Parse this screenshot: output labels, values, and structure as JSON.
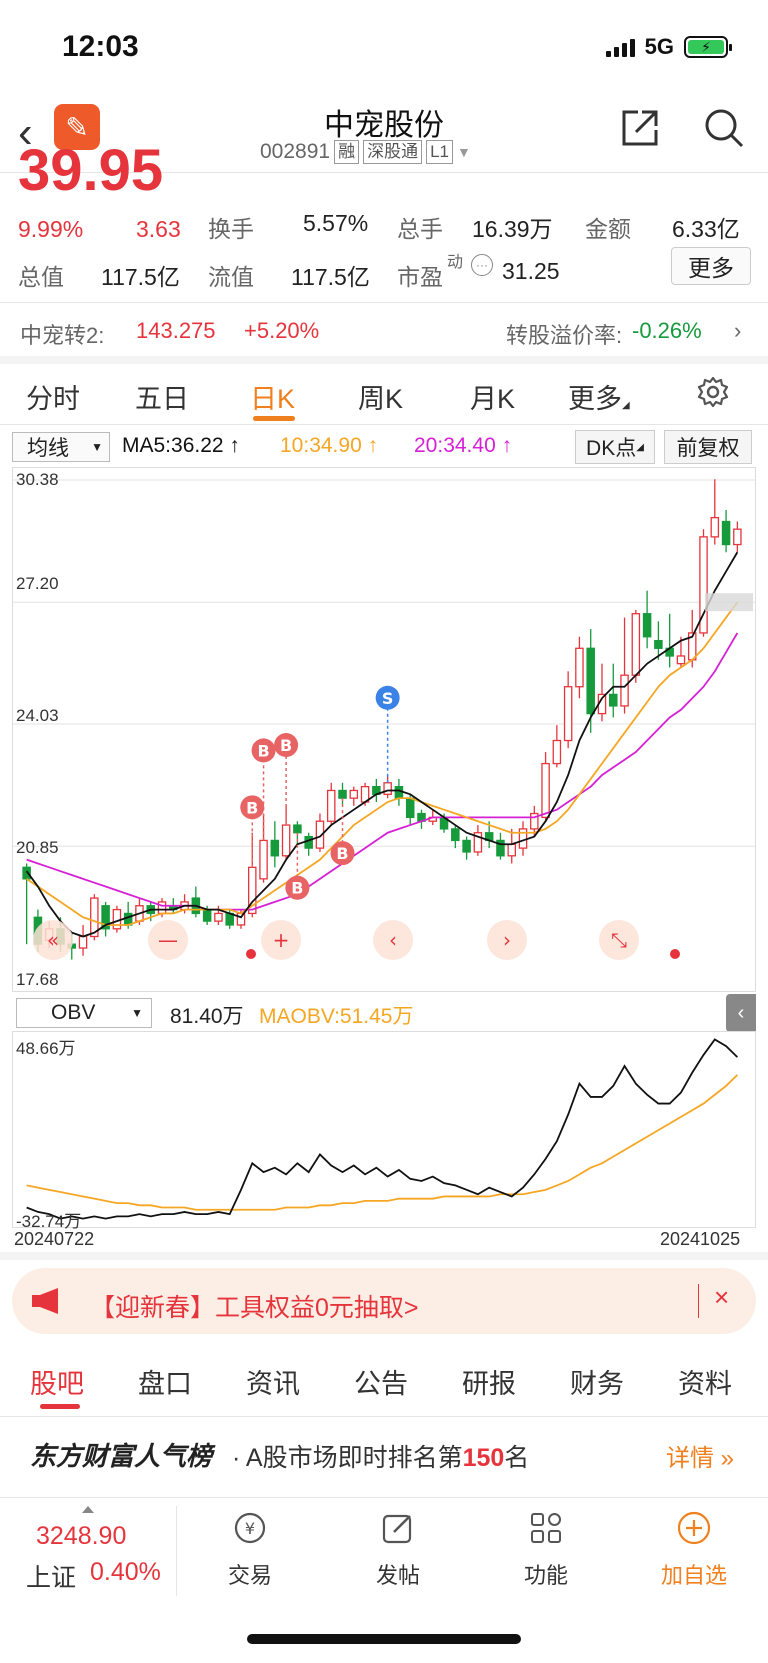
{
  "status": {
    "time": "12:03",
    "network": "5G"
  },
  "header": {
    "title": "中宠股份",
    "code": "002891",
    "tags": [
      "融",
      "深股通",
      "L1"
    ]
  },
  "quote": {
    "price": "39.95",
    "pct": "9.99%",
    "change": "3.63",
    "rows": [
      [
        {
          "label": "换手",
          "value": "5.57%"
        },
        {
          "label": "总手",
          "value": "16.39万"
        },
        {
          "label": "金额",
          "value": "6.33亿"
        }
      ],
      [
        {
          "label": "总值",
          "value": "117.5亿"
        },
        {
          "label": "流值",
          "value": "117.5亿"
        },
        {
          "label": "市盈",
          "value": "31.25",
          "sup": "动"
        }
      ]
    ],
    "more_label": "更多"
  },
  "convertible": {
    "name": "中宠转2:",
    "price": "143.275",
    "pct": "+5.20%",
    "premium_label": "转股溢价率:",
    "premium_value": "-0.26%"
  },
  "kline_tabs": [
    "分时",
    "五日",
    "日K",
    "周K",
    "月K",
    "更多"
  ],
  "ma_bar": {
    "select": "均线",
    "ma5": "MA5:36.22",
    "ma10": "10:34.90",
    "ma20": "20:34.40",
    "dk": "DK点",
    "fq": "前复权"
  },
  "chart_yticks": [
    "30.38",
    "27.20",
    "24.03",
    "20.85",
    "17.68"
  ],
  "obv": {
    "select": "OBV",
    "value": "81.40万",
    "ma": "MAOBV:51.45万",
    "ytop": "48.66万",
    "ybottom": "-32.74万"
  },
  "dates": {
    "start": "20240722",
    "end": "20241025"
  },
  "banner": {
    "text": "【迎新春】工具权益0元抽取>",
    "close": "×"
  },
  "bottom_tabs": [
    "股吧",
    "盘口",
    "资讯",
    "公告",
    "研报",
    "财务",
    "资料"
  ],
  "rank": {
    "title": "东方财富人气榜",
    "text_prefix": "· A股市场即时排名第",
    "rank": "150",
    "text_suffix": "名",
    "detail": "详情"
  },
  "bottom_bar": {
    "index_value": "3248.90",
    "index_name": "上证",
    "index_pct": "0.40%",
    "items": [
      "交易",
      "发帖",
      "功能",
      "加自选"
    ]
  },
  "colors": {
    "up": "#e5343c",
    "down": "#169a3c",
    "accent": "#f07f1d",
    "ma5": "#111111",
    "ma10": "#f5a623",
    "ma20": "#d620d6"
  },
  "chart_data": {
    "type": "candlestick",
    "ylim": [
      17.68,
      30.38
    ],
    "candles": [
      [
        20.3,
        20.0,
        20.4,
        18.3
      ],
      [
        19.0,
        18.3,
        19.2,
        18.1
      ],
      [
        18.4,
        18.7,
        18.9,
        18.2
      ],
      [
        18.7,
        18.3,
        19.0,
        18.1
      ],
      [
        18.3,
        18.2,
        18.6,
        17.9
      ],
      [
        18.2,
        18.5,
        18.8,
        18.0
      ],
      [
        18.5,
        19.5,
        19.6,
        18.4
      ],
      [
        19.3,
        18.7,
        19.4,
        18.5
      ],
      [
        18.7,
        19.2,
        19.3,
        18.6
      ],
      [
        19.1,
        18.8,
        19.4,
        18.7
      ],
      [
        18.9,
        19.3,
        19.5,
        18.8
      ],
      [
        19.3,
        19.1,
        19.4,
        18.9
      ],
      [
        19.1,
        19.4,
        19.5,
        19.0
      ],
      [
        19.3,
        19.2,
        19.5,
        19.1
      ],
      [
        19.2,
        19.4,
        19.6,
        19.1
      ],
      [
        19.5,
        19.1,
        19.8,
        19.0
      ],
      [
        19.2,
        18.9,
        19.3,
        18.8
      ],
      [
        18.9,
        19.1,
        19.3,
        18.8
      ],
      [
        19.1,
        18.8,
        19.2,
        18.7
      ],
      [
        18.8,
        19.1,
        19.2,
        18.7
      ],
      [
        19.1,
        20.3,
        21.2,
        19.0
      ],
      [
        20.0,
        21.0,
        21.7,
        19.9
      ],
      [
        21.0,
        20.6,
        21.5,
        20.3
      ],
      [
        20.6,
        21.4,
        21.9,
        20.5
      ],
      [
        21.4,
        21.2,
        21.5,
        20.9
      ],
      [
        21.1,
        20.8,
        21.2,
        20.6
      ],
      [
        20.8,
        21.5,
        21.7,
        20.7
      ],
      [
        21.5,
        22.3,
        22.5,
        21.4
      ],
      [
        22.3,
        22.1,
        22.5,
        21.9
      ],
      [
        22.1,
        22.3,
        22.4,
        21.9
      ],
      [
        22.0,
        22.4,
        22.5,
        21.9
      ],
      [
        22.4,
        22.2,
        22.6,
        22.0
      ],
      [
        22.2,
        22.5,
        22.7,
        22.1
      ],
      [
        22.4,
        22.1,
        22.6,
        21.9
      ],
      [
        22.1,
        21.6,
        22.2,
        21.4
      ],
      [
        21.7,
        21.5,
        21.8,
        21.3
      ],
      [
        21.5,
        21.6,
        21.8,
        21.4
      ],
      [
        21.6,
        21.3,
        21.7,
        21.2
      ],
      [
        21.3,
        21.0,
        21.4,
        20.8
      ],
      [
        21.0,
        20.7,
        21.1,
        20.5
      ],
      [
        20.7,
        21.2,
        21.4,
        20.6
      ],
      [
        21.2,
        21.0,
        21.5,
        20.8
      ],
      [
        21.0,
        20.6,
        21.2,
        20.5
      ],
      [
        20.6,
        20.9,
        21.3,
        20.4
      ],
      [
        20.8,
        21.3,
        21.5,
        20.6
      ],
      [
        21.3,
        21.7,
        21.9,
        21.1
      ],
      [
        21.6,
        23.0,
        23.3,
        21.5
      ],
      [
        23.0,
        23.6,
        24.0,
        22.9
      ],
      [
        23.6,
        25.0,
        25.4,
        23.4
      ],
      [
        25.0,
        26.0,
        26.3,
        24.7
      ],
      [
        26.0,
        24.3,
        26.5,
        23.8
      ],
      [
        24.3,
        24.8,
        25.6,
        24.1
      ],
      [
        24.8,
        24.5,
        25.6,
        24.2
      ],
      [
        24.5,
        25.3,
        26.8,
        24.3
      ],
      [
        25.3,
        26.9,
        27.0,
        25.1
      ],
      [
        26.9,
        26.3,
        27.5,
        26.0
      ],
      [
        26.2,
        26.0,
        26.7,
        25.7
      ],
      [
        26.0,
        25.8,
        26.9,
        25.5
      ],
      [
        25.6,
        25.8,
        26.3,
        25.5
      ],
      [
        25.7,
        26.4,
        27.0,
        25.5
      ],
      [
        26.4,
        28.9,
        29.1,
        26.3
      ],
      [
        28.9,
        29.4,
        30.4,
        28.7
      ],
      [
        29.3,
        28.7,
        29.6,
        28.5
      ],
      [
        28.7,
        29.1,
        29.3,
        28.5
      ]
    ],
    "ma5": [
      20.2,
      19.8,
      19.3,
      18.9,
      18.6,
      18.5,
      18.6,
      18.8,
      18.9,
      19.0,
      19.1,
      19.2,
      19.2,
      19.2,
      19.3,
      19.3,
      19.2,
      19.2,
      19.1,
      19.0,
      19.4,
      19.7,
      20.0,
      20.5,
      20.9,
      21.0,
      21.1,
      21.4,
      21.6,
      21.8,
      22.0,
      22.2,
      22.3,
      22.3,
      22.2,
      22.0,
      21.8,
      21.6,
      21.4,
      21.2,
      21.1,
      21.0,
      20.9,
      20.9,
      21.0,
      21.1,
      21.5,
      22.0,
      22.7,
      23.6,
      24.2,
      24.7,
      25.0,
      25.0,
      25.3,
      25.6,
      25.8,
      26.0,
      26.2,
      26.3,
      26.9,
      27.5,
      28.0,
      28.5
    ],
    "ma10": [
      20.0,
      19.8,
      19.6,
      19.4,
      19.2,
      19.0,
      18.9,
      18.8,
      18.8,
      18.8,
      18.9,
      19.0,
      19.1,
      19.1,
      19.2,
      19.2,
      19.2,
      19.2,
      19.2,
      19.1,
      19.3,
      19.5,
      19.7,
      19.9,
      20.1,
      20.3,
      20.5,
      20.8,
      21.1,
      21.4,
      21.6,
      21.8,
      22.0,
      22.1,
      22.1,
      22.0,
      21.9,
      21.8,
      21.7,
      21.6,
      21.5,
      21.4,
      21.3,
      21.2,
      21.2,
      21.2,
      21.3,
      21.5,
      21.8,
      22.2,
      22.6,
      23.0,
      23.4,
      23.8,
      24.2,
      24.6,
      25.0,
      25.3,
      25.5,
      25.7,
      26.0,
      26.4,
      26.8,
      27.2
    ],
    "ma20": [
      20.5,
      20.4,
      20.3,
      20.2,
      20.1,
      20.0,
      19.9,
      19.8,
      19.7,
      19.6,
      19.5,
      19.4,
      19.3,
      19.3,
      19.3,
      19.3,
      19.2,
      19.2,
      19.2,
      19.2,
      19.2,
      19.3,
      19.4,
      19.5,
      19.6,
      19.8,
      20.0,
      20.2,
      20.4,
      20.6,
      20.8,
      21.0,
      21.2,
      21.3,
      21.4,
      21.5,
      21.6,
      21.6,
      21.6,
      21.6,
      21.6,
      21.6,
      21.6,
      21.6,
      21.6,
      21.6,
      21.7,
      21.8,
      22.0,
      22.2,
      22.4,
      22.7,
      22.9,
      23.1,
      23.3,
      23.6,
      23.9,
      24.2,
      24.4,
      24.7,
      25.0,
      25.4,
      25.9,
      26.4
    ],
    "obv_ylim": [
      -32.74,
      48.66
    ],
    "obv": [
      -28,
      -30,
      -31,
      -33,
      -32,
      -33,
      -32,
      -33,
      -32,
      -32,
      -31,
      -32,
      -31,
      -31,
      -30,
      -31,
      -31,
      -30,
      -31,
      -20,
      -8,
      -12,
      -10,
      -13,
      -8,
      -12,
      -4,
      -9,
      -12,
      -9,
      -13,
      -10,
      -14,
      -11,
      -15,
      -16,
      -14,
      -17,
      -18,
      -20,
      -22,
      -19,
      -21,
      -23,
      -19,
      -13,
      -6,
      2,
      14,
      28,
      22,
      22,
      27,
      36,
      28,
      23,
      19,
      19,
      24,
      33,
      41,
      48,
      45,
      40
    ],
    "maobv": [
      -18,
      -19,
      -20,
      -21,
      -22,
      -23,
      -24,
      -25,
      -26,
      -26,
      -27,
      -27,
      -28,
      -28,
      -28,
      -29,
      -29,
      -29,
      -29,
      -29,
      -29,
      -29,
      -29,
      -28,
      -28,
      -28,
      -27,
      -27,
      -26,
      -26,
      -25,
      -25,
      -25,
      -24,
      -24,
      -24,
      -24,
      -23,
      -23,
      -23,
      -23,
      -23,
      -22,
      -22,
      -22,
      -21,
      -20,
      -18,
      -16,
      -13,
      -10,
      -8,
      -5,
      -2,
      1,
      4,
      7,
      10,
      13,
      16,
      19,
      23,
      27,
      32
    ]
  }
}
